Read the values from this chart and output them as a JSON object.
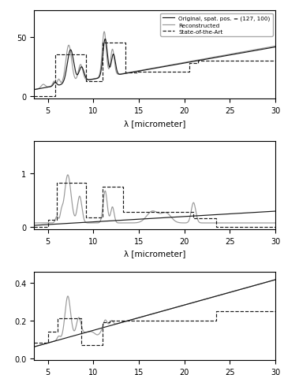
{
  "xlabel": "λ [micrometer]",
  "xlim": [
    3.5,
    30
  ],
  "xticks": [
    5,
    10,
    15,
    20,
    25,
    30
  ],
  "legend_labels": [
    "Original, spat. pos. = (127, 100)",
    "Reconstructed",
    "State-of-the-Art"
  ],
  "original_color": "#1a1a1a",
  "reconstructed_color": "#999999",
  "sota_color": "#1a1a1a",
  "panel1": {
    "ylim": [
      -2,
      72
    ],
    "yticks": [
      0,
      50
    ]
  },
  "panel2": {
    "ylim": [
      -0.05,
      1.6
    ],
    "yticks": [
      0,
      1
    ]
  },
  "panel3": {
    "ylim": [
      -0.01,
      0.46
    ],
    "yticks": [
      0.0,
      0.2,
      0.4
    ]
  },
  "sota1_x": [
    3.5,
    5.8,
    5.8,
    9.2,
    9.2,
    11.0,
    11.0,
    13.5,
    13.5,
    14.8,
    14.8,
    20.5,
    20.5,
    21.5,
    21.5,
    30.0
  ],
  "sota1_y": [
    0,
    0,
    35,
    35,
    13,
    13,
    45,
    45,
    20,
    20,
    21,
    21,
    28,
    28,
    30,
    30
  ],
  "sota2_x": [
    3.5,
    5.0,
    5.0,
    6.0,
    6.0,
    9.2,
    9.2,
    11.0,
    11.0,
    13.3,
    13.3,
    21.0,
    21.0,
    23.5,
    23.5,
    30.0
  ],
  "sota2_y": [
    0,
    0,
    0.13,
    0.13,
    0.82,
    0.82,
    0.17,
    0.17,
    0.75,
    0.75,
    0.28,
    0.28,
    0.16,
    0.16,
    0.0,
    0.0
  ],
  "sota3_x": [
    3.5,
    5.0,
    5.0,
    6.1,
    6.1,
    8.7,
    8.7,
    11.0,
    11.0,
    11.8,
    11.8,
    23.5,
    23.5,
    25.0,
    25.0,
    30.0
  ],
  "sota3_y": [
    0.08,
    0.08,
    0.14,
    0.14,
    0.21,
    0.21,
    0.07,
    0.07,
    0.19,
    0.19,
    0.2,
    0.2,
    0.25,
    0.25,
    0.25,
    0.25
  ]
}
